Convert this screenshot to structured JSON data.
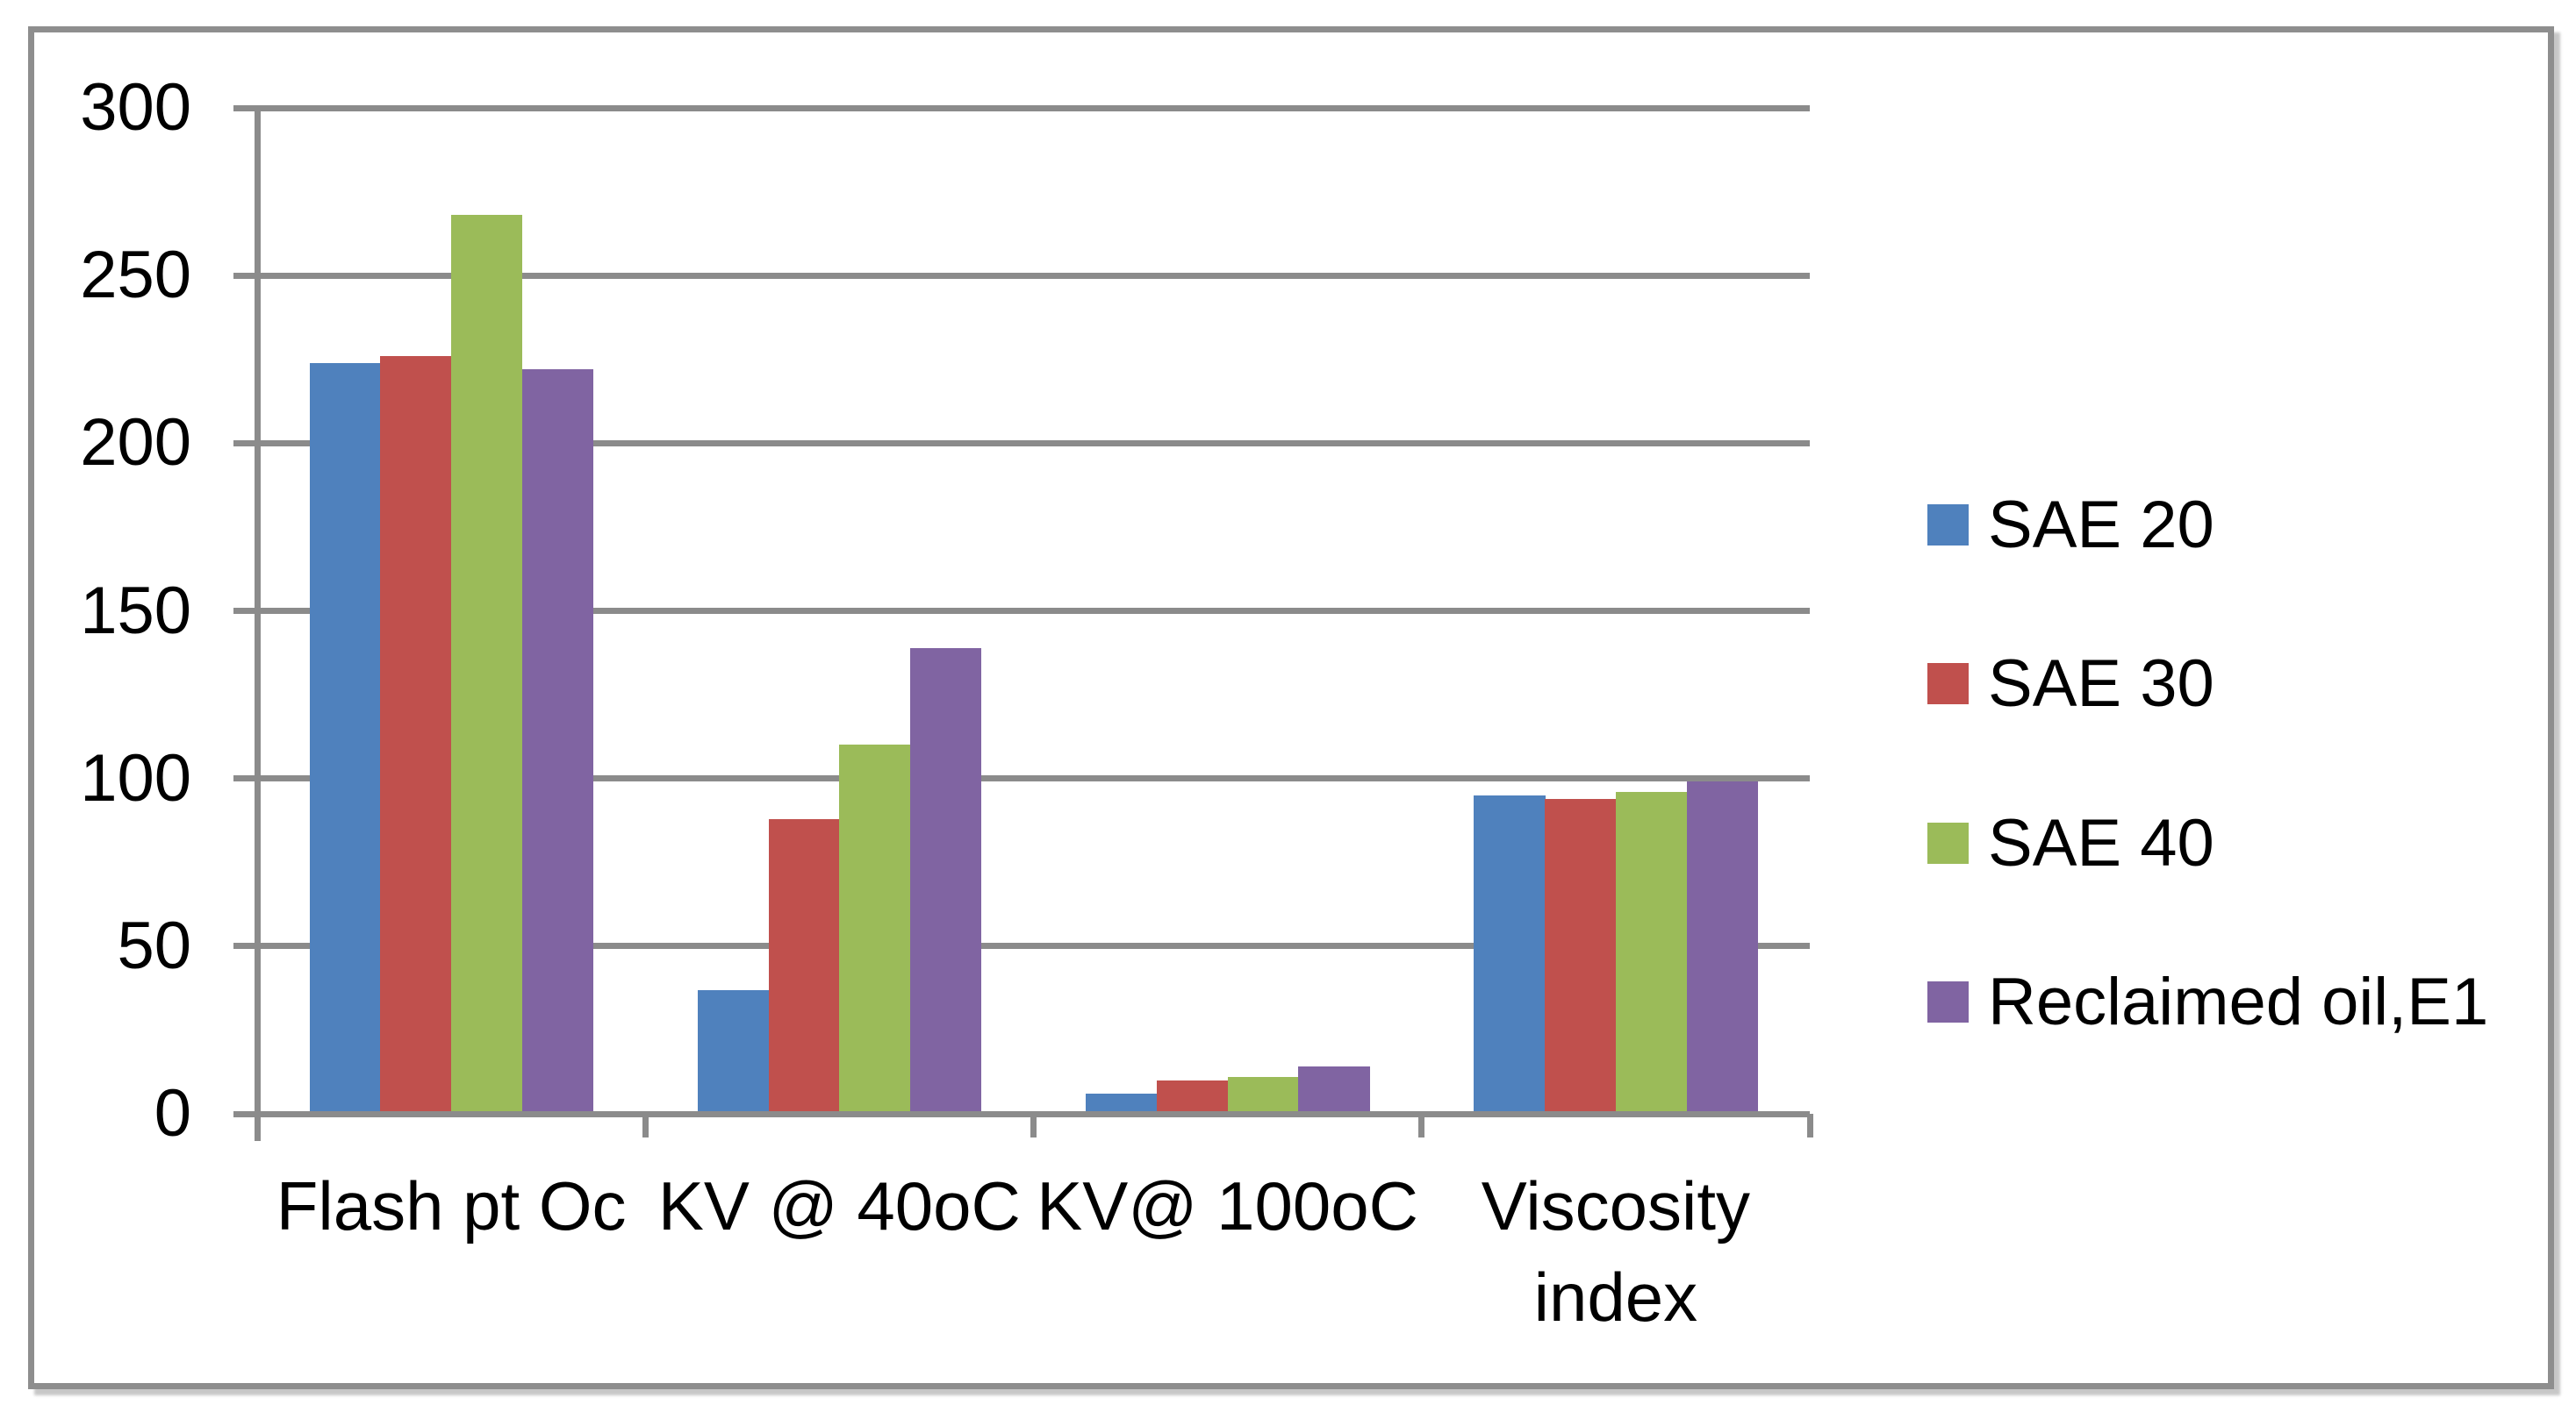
{
  "chart_data": {
    "type": "bar",
    "title": "",
    "xlabel": "",
    "ylabel": "",
    "categories": [
      "Flash pt Oc",
      "KV @ 40oC",
      "KV@ 100oC",
      "Viscosity index"
    ],
    "series": [
      {
        "name": "SAE 20",
        "color": "#4F81BD",
        "values": [
          224,
          37,
          6,
          95
        ]
      },
      {
        "name": "SAE 30",
        "color": "#C0504D",
        "values": [
          226,
          88,
          10,
          94
        ]
      },
      {
        "name": "SAE 40",
        "color": "#9BBB59",
        "values": [
          268,
          110,
          11,
          96
        ]
      },
      {
        "name": "Reclaimed oil,E1",
        "color": "#8064A2",
        "values": [
          222,
          139,
          14,
          99
        ]
      }
    ],
    "ylim": [
      0,
      300
    ],
    "ytick_step": 50,
    "yticks": [
      "0",
      "50",
      "100",
      "150",
      "200",
      "250",
      "300"
    ],
    "grid": true,
    "legend_position": "right"
  },
  "colors": {
    "axis": "#8B8B8B",
    "gridline": "#8B8B8B",
    "frame_border": "#8E8E8E",
    "background": "#FFFFFF",
    "text": "#000000"
  }
}
